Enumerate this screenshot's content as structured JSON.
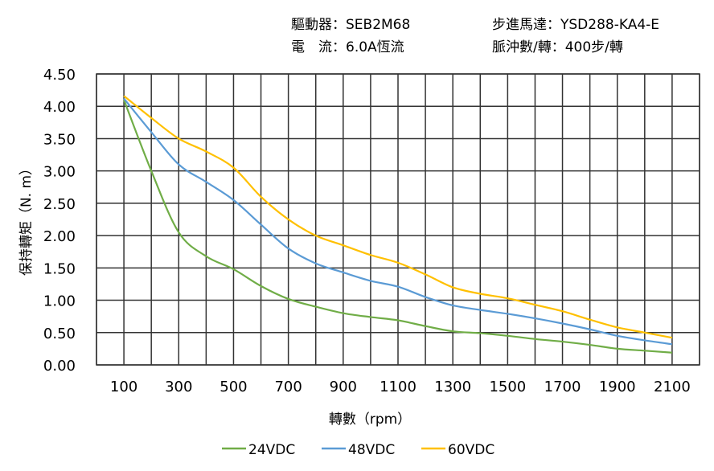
{
  "header": {
    "driver": "驅動器：SEB2M68",
    "current": "電　流：6.0A恆流",
    "motor": "步進馬達：YSD288-KA4-E",
    "pulses": "脈沖數/轉：400步/轉"
  },
  "chart_data": {
    "type": "line",
    "title": "",
    "xlabel": "轉數（rpm）",
    "ylabel": "保持轉矩（N. m）",
    "xlim": [
      0,
      2200
    ],
    "ylim": [
      0,
      4.5
    ],
    "xticks": [
      "100",
      "300",
      "500",
      "700",
      "900",
      "1100",
      "1300",
      "1500",
      "1700",
      "1900",
      "2100"
    ],
    "yticks": [
      "0.00",
      "0.50",
      "1.00",
      "1.50",
      "2.00",
      "2.50",
      "3.00",
      "3.50",
      "4.00",
      "4.50"
    ],
    "grid": true,
    "legend_position": "bottom",
    "x": [
      100,
      200,
      300,
      400,
      500,
      600,
      700,
      800,
      900,
      1000,
      1100,
      1200,
      1300,
      1400,
      1500,
      1600,
      1700,
      1800,
      1900,
      2000,
      2100
    ],
    "series": [
      {
        "name": "24VDC",
        "color": "#70ad47",
        "values": [
          4.1,
          3.0,
          2.05,
          1.68,
          1.48,
          1.22,
          1.02,
          0.9,
          0.8,
          0.74,
          0.69,
          0.6,
          0.52,
          0.49,
          0.45,
          0.4,
          0.36,
          0.31,
          0.25,
          0.22,
          0.19
        ]
      },
      {
        "name": "48VDC",
        "color": "#5b9bd5",
        "values": [
          4.12,
          3.6,
          3.1,
          2.83,
          2.55,
          2.17,
          1.8,
          1.57,
          1.43,
          1.3,
          1.21,
          1.05,
          0.92,
          0.85,
          0.79,
          0.72,
          0.64,
          0.55,
          0.45,
          0.38,
          0.32
        ]
      },
      {
        "name": "60VDC",
        "color": "#ffc000",
        "values": [
          4.16,
          3.82,
          3.5,
          3.3,
          3.05,
          2.6,
          2.25,
          2.0,
          1.85,
          1.7,
          1.58,
          1.4,
          1.2,
          1.1,
          1.03,
          0.93,
          0.83,
          0.7,
          0.58,
          0.5,
          0.42
        ]
      }
    ]
  }
}
